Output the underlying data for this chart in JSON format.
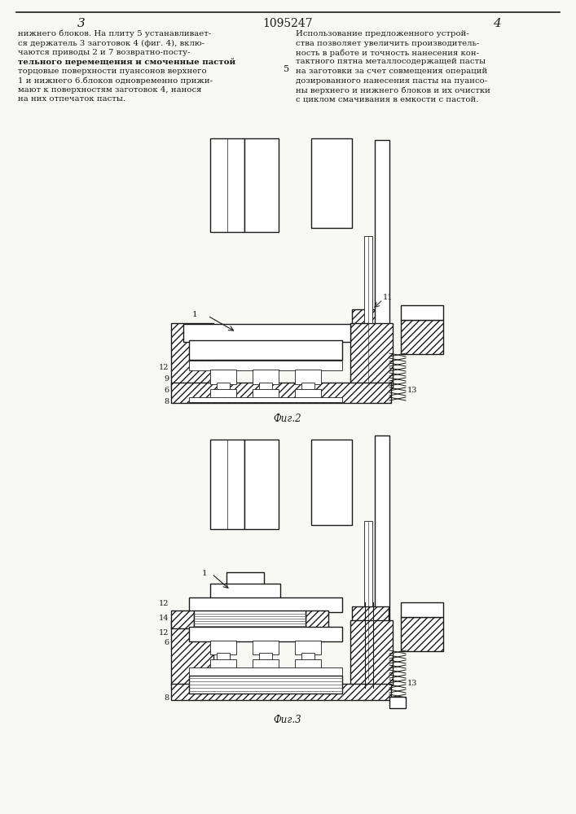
{
  "page_number_left": "3",
  "page_number_right": "4",
  "patent_number": "1095247",
  "fig2_label": "Фиг.2",
  "fig3_label": "Фиг.3",
  "bg_color": "#f8f8f5",
  "line_color": "#1a1a1a",
  "text_color": "#1a1a1a",
  "left_lines": [
    "нижнего блоков. На плиту 5 устанавливает-",
    "ся держатель 3 заготовок 4 (фиг. 4), вклю-",
    "чаются приводы 2 и 7 возвратно-посту-",
    "тельного перемещения и смоченные пастой",
    "торцовые поверхности пуансонов верхнего",
    "1 и нижнего 6.блоков одновременно прижи-",
    "мают к поверхностям заготовок 4, нанося",
    "на них отпечаток пасты."
  ],
  "right_lines": [
    "Использование предложенного устрой-",
    "ства позволяет увеличить производитель-",
    "ность в работе и точность нанесения кон-",
    "тактного пятна металлосодержащей пасты",
    "на заготовки за счет совмещения операций",
    "дозированного нанесения пасты на пуансо-",
    "ны верхнего и нижнего блоков и их очистки",
    "с циклом смачивания в емкости с пастой."
  ]
}
